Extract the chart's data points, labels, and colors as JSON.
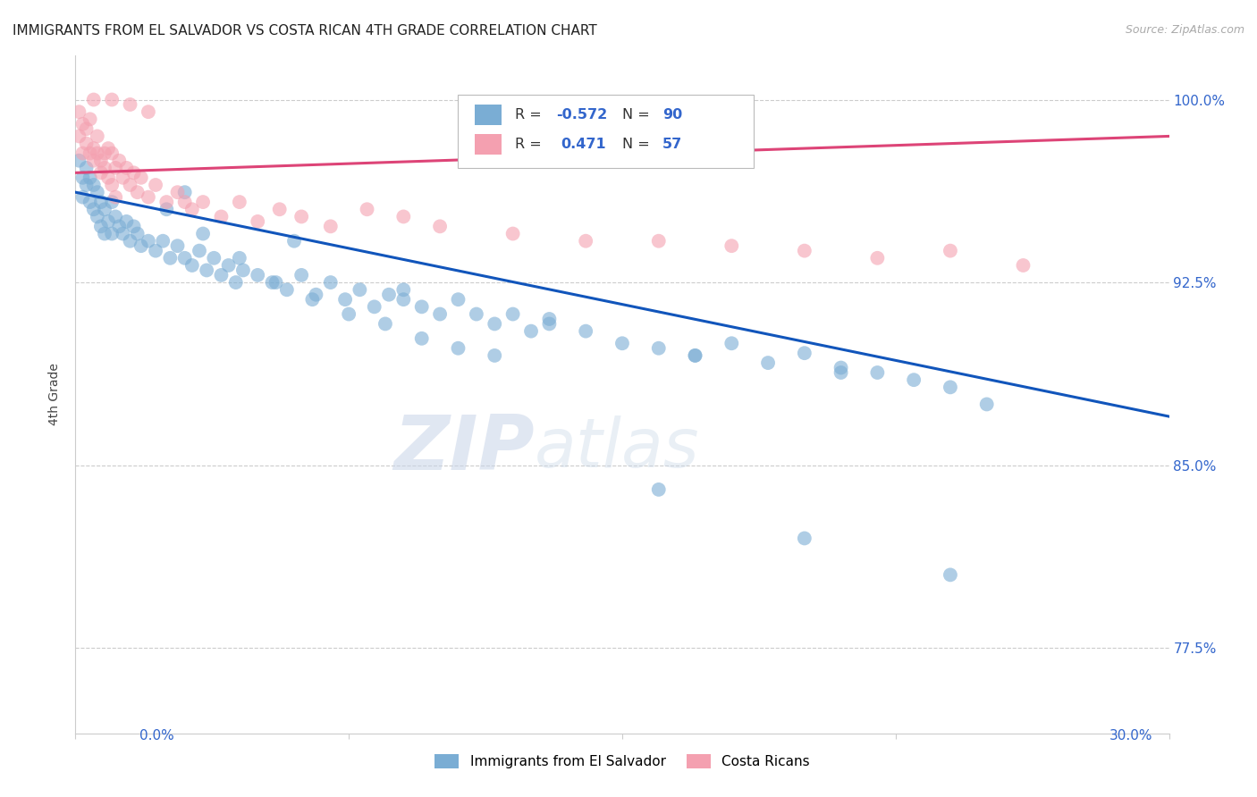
{
  "title": "IMMIGRANTS FROM EL SALVADOR VS COSTA RICAN 4TH GRADE CORRELATION CHART",
  "source": "Source: ZipAtlas.com",
  "ylabel": "4th Grade",
  "yticks_shown": [
    1.0,
    0.925,
    0.85,
    0.775
  ],
  "ytick_labels_shown": [
    "100.0%",
    "92.5%",
    "85.0%",
    "77.5%"
  ],
  "xmin": 0.0,
  "xmax": 0.3,
  "ymin": 0.74,
  "ymax": 1.018,
  "blue_R": -0.572,
  "blue_N": 90,
  "pink_R": 0.471,
  "pink_N": 57,
  "blue_color": "#7aadd4",
  "pink_color": "#f4a0b0",
  "blue_line_color": "#1155bb",
  "pink_line_color": "#dd4477",
  "legend_label_blue": "Immigrants from El Salvador",
  "legend_label_pink": "Costa Ricans",
  "watermark_zip": "ZIP",
  "watermark_atlas": "atlas",
  "title_fontsize": 11,
  "blue_x": [
    0.001,
    0.002,
    0.002,
    0.003,
    0.003,
    0.004,
    0.004,
    0.005,
    0.005,
    0.006,
    0.006,
    0.007,
    0.007,
    0.008,
    0.008,
    0.009,
    0.01,
    0.01,
    0.011,
    0.012,
    0.013,
    0.014,
    0.015,
    0.016,
    0.017,
    0.018,
    0.02,
    0.022,
    0.024,
    0.026,
    0.028,
    0.03,
    0.032,
    0.034,
    0.036,
    0.038,
    0.04,
    0.042,
    0.044,
    0.046,
    0.05,
    0.054,
    0.058,
    0.062,
    0.066,
    0.07,
    0.074,
    0.078,
    0.082,
    0.086,
    0.09,
    0.095,
    0.1,
    0.105,
    0.11,
    0.115,
    0.12,
    0.125,
    0.13,
    0.14,
    0.15,
    0.16,
    0.17,
    0.18,
    0.19,
    0.2,
    0.21,
    0.22,
    0.23,
    0.24,
    0.025,
    0.035,
    0.045,
    0.055,
    0.065,
    0.075,
    0.085,
    0.095,
    0.105,
    0.115,
    0.03,
    0.06,
    0.09,
    0.13,
    0.17,
    0.21,
    0.25,
    0.16,
    0.2,
    0.24
  ],
  "blue_y": [
    0.975,
    0.968,
    0.96,
    0.972,
    0.965,
    0.968,
    0.958,
    0.965,
    0.955,
    0.962,
    0.952,
    0.958,
    0.948,
    0.955,
    0.945,
    0.95,
    0.958,
    0.945,
    0.952,
    0.948,
    0.945,
    0.95,
    0.942,
    0.948,
    0.945,
    0.94,
    0.942,
    0.938,
    0.942,
    0.935,
    0.94,
    0.935,
    0.932,
    0.938,
    0.93,
    0.935,
    0.928,
    0.932,
    0.925,
    0.93,
    0.928,
    0.925,
    0.922,
    0.928,
    0.92,
    0.925,
    0.918,
    0.922,
    0.915,
    0.92,
    0.918,
    0.915,
    0.912,
    0.918,
    0.912,
    0.908,
    0.912,
    0.905,
    0.91,
    0.905,
    0.9,
    0.898,
    0.895,
    0.9,
    0.892,
    0.896,
    0.89,
    0.888,
    0.885,
    0.882,
    0.955,
    0.945,
    0.935,
    0.925,
    0.918,
    0.912,
    0.908,
    0.902,
    0.898,
    0.895,
    0.962,
    0.942,
    0.922,
    0.908,
    0.895,
    0.888,
    0.875,
    0.84,
    0.82,
    0.805
  ],
  "pink_x": [
    0.001,
    0.001,
    0.002,
    0.002,
    0.003,
    0.003,
    0.004,
    0.004,
    0.005,
    0.005,
    0.006,
    0.006,
    0.007,
    0.007,
    0.008,
    0.008,
    0.009,
    0.009,
    0.01,
    0.01,
    0.011,
    0.011,
    0.012,
    0.013,
    0.014,
    0.015,
    0.016,
    0.017,
    0.018,
    0.02,
    0.022,
    0.025,
    0.028,
    0.03,
    0.032,
    0.035,
    0.04,
    0.045,
    0.05,
    0.056,
    0.062,
    0.07,
    0.08,
    0.09,
    0.1,
    0.12,
    0.14,
    0.16,
    0.18,
    0.2,
    0.22,
    0.24,
    0.26,
    0.005,
    0.01,
    0.015,
    0.02
  ],
  "pink_y": [
    0.985,
    0.995,
    0.978,
    0.99,
    0.982,
    0.988,
    0.978,
    0.992,
    0.98,
    0.975,
    0.978,
    0.985,
    0.975,
    0.97,
    0.978,
    0.972,
    0.98,
    0.968,
    0.978,
    0.965,
    0.972,
    0.96,
    0.975,
    0.968,
    0.972,
    0.965,
    0.97,
    0.962,
    0.968,
    0.96,
    0.965,
    0.958,
    0.962,
    0.958,
    0.955,
    0.958,
    0.952,
    0.958,
    0.95,
    0.955,
    0.952,
    0.948,
    0.955,
    0.952,
    0.948,
    0.945,
    0.942,
    0.942,
    0.94,
    0.938,
    0.935,
    0.938,
    0.932,
    1.0,
    1.0,
    0.998,
    0.995
  ]
}
